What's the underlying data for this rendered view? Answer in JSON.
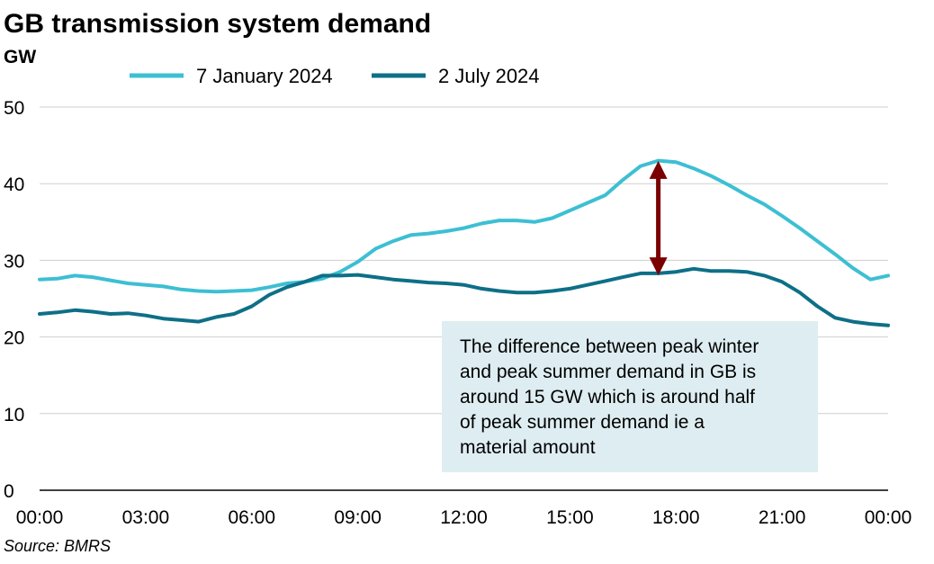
{
  "chart_data": {
    "type": "line",
    "title": "GB transmission system demand",
    "ylabel": "GW",
    "xlabel": "",
    "ylim": [
      0,
      50
    ],
    "yticks": [
      0,
      10,
      20,
      30,
      40,
      50
    ],
    "xlim": [
      0,
      24
    ],
    "xtick_labels": [
      "00:00",
      "03:00",
      "06:00",
      "09:00",
      "12:00",
      "15:00",
      "18:00",
      "21:00",
      "00:00"
    ],
    "grid": true,
    "legend_position": "top",
    "x": [
      0,
      0.5,
      1,
      1.5,
      2,
      2.5,
      3,
      3.5,
      4,
      4.5,
      5,
      5.5,
      6,
      6.5,
      7,
      7.5,
      8,
      8.5,
      9,
      9.5,
      10,
      10.5,
      11,
      11.5,
      12,
      12.5,
      13,
      13.5,
      14,
      14.5,
      15,
      15.5,
      16,
      16.5,
      17,
      17.5,
      18,
      18.5,
      19,
      19.5,
      20,
      20.5,
      21,
      21.5,
      22,
      22.5,
      23,
      23.5,
      24
    ],
    "series": [
      {
        "name": "7 January 2024",
        "color": "#3dbfd3",
        "values": [
          27.5,
          27.6,
          28.0,
          27.8,
          27.4,
          27.0,
          26.8,
          26.6,
          26.2,
          26.0,
          25.9,
          26.0,
          26.1,
          26.5,
          27.0,
          27.2,
          27.6,
          28.5,
          29.8,
          31.5,
          32.5,
          33.3,
          33.5,
          33.8,
          34.2,
          34.8,
          35.2,
          35.2,
          35.0,
          35.5,
          36.5,
          37.5,
          38.5,
          40.5,
          42.3,
          43.0,
          42.8,
          42.0,
          41.0,
          39.8,
          38.5,
          37.3,
          35.8,
          34.2,
          32.5,
          30.8,
          29.0,
          27.5,
          28.0
        ]
      },
      {
        "name": "2 July 2024",
        "color": "#0e6f87",
        "values": [
          23.0,
          23.2,
          23.5,
          23.3,
          23.0,
          23.1,
          22.8,
          22.4,
          22.2,
          22.0,
          22.6,
          23.0,
          24.0,
          25.5,
          26.5,
          27.2,
          28.0,
          28.0,
          28.1,
          27.8,
          27.5,
          27.3,
          27.1,
          27.0,
          26.8,
          26.3,
          26.0,
          25.8,
          25.8,
          26.0,
          26.3,
          26.8,
          27.3,
          27.8,
          28.3,
          28.3,
          28.5,
          28.9,
          28.6,
          28.6,
          28.5,
          28.0,
          27.2,
          25.8,
          24.0,
          22.5,
          22.0,
          21.7,
          21.5
        ]
      }
    ],
    "annotations": {
      "arrow": {
        "x": 17.5,
        "y_from": 28.5,
        "y_to": 42.5,
        "color": "#7b0000"
      },
      "textbox": {
        "lines": [
          "The difference between peak winter",
          "and peak summer demand in GB is",
          "around 15 GW which is around half",
          "of peak summer demand ie a",
          "material amount"
        ],
        "background": "#deedf1"
      }
    },
    "source": "Source: BMRS"
  }
}
